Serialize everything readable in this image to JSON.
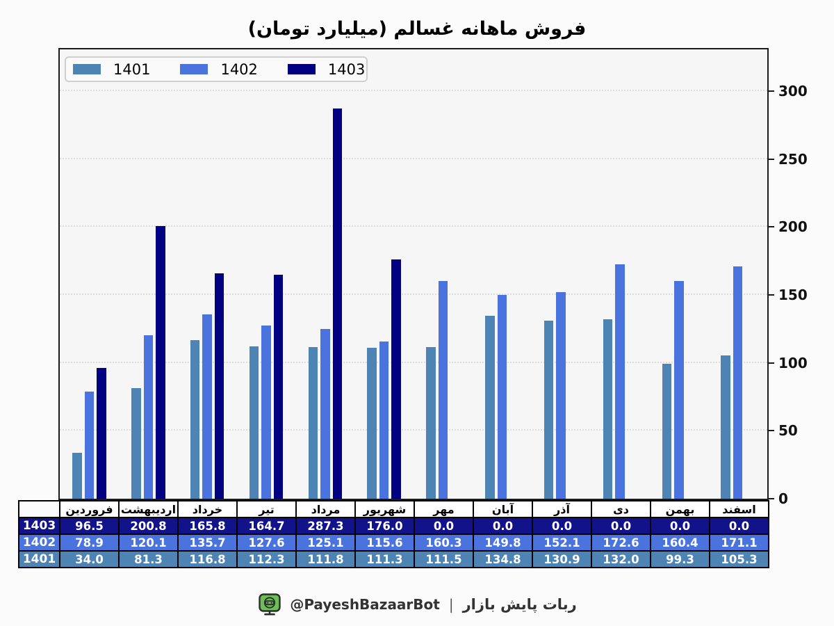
{
  "title": "فروش ماهانه غسالم (میلیارد تومان)",
  "colors": {
    "series_1401": "#4e84b4",
    "series_1402": "#4a73dd",
    "series_1403": "#000080",
    "table_row_1403": "#12128a",
    "table_row_1402": "#4a73dd",
    "table_row_1401": "#4e84b4",
    "frame": "#1a1a1a",
    "grid": "#dcdcdc",
    "plot_bg": "#f6f6f7",
    "page_bg": "#fbfbfb",
    "icon_green": "#6cbe57"
  },
  "legend": {
    "items": [
      {
        "label": "1401",
        "color": "#4e84b4"
      },
      {
        "label": "1402",
        "color": "#4a73dd"
      },
      {
        "label": "1403",
        "color": "#000080"
      }
    ]
  },
  "chart_data": {
    "type": "bar",
    "title": "فروش ماهانه غسالم (میلیارد تومان)",
    "unit": "میلیارد تومان",
    "categories": [
      "فروردین",
      "اردیبهشت",
      "خرداد",
      "تیر",
      "مرداد",
      "شهریور",
      "مهر",
      "آبان",
      "آذر",
      "دی",
      "بهمن",
      "اسفند"
    ],
    "series": [
      {
        "name": "1401",
        "color": "#4e84b4",
        "values": [
          34.0,
          81.3,
          116.8,
          112.3,
          111.8,
          111.3,
          111.5,
          134.8,
          130.9,
          132.0,
          99.3,
          105.3
        ]
      },
      {
        "name": "1402",
        "color": "#4a73dd",
        "values": [
          78.9,
          120.1,
          135.7,
          127.6,
          125.1,
          115.6,
          160.3,
          149.8,
          152.1,
          172.6,
          160.4,
          171.1
        ]
      },
      {
        "name": "1403",
        "color": "#000080",
        "values": [
          96.5,
          200.8,
          165.8,
          164.7,
          287.3,
          176.0,
          0.0,
          0.0,
          0.0,
          0.0,
          0.0,
          0.0
        ]
      }
    ],
    "ylim": [
      0,
      331
    ],
    "yticks": [
      0,
      50,
      100,
      150,
      200,
      250,
      300
    ],
    "grid": "horizontal-dotted",
    "legend_position": "upper-left"
  },
  "table": {
    "months": [
      "فروردین",
      "اردیبهشت",
      "خرداد",
      "تیر",
      "مرداد",
      "شهریور",
      "مهر",
      "آبان",
      "آذر",
      "دی",
      "بهمن",
      "اسفند"
    ],
    "rows": [
      {
        "label": "1403",
        "bg": "#12128a",
        "values": [
          "96.5",
          "200.8",
          "165.8",
          "164.7",
          "287.3",
          "176.0",
          "0.0",
          "0.0",
          "0.0",
          "0.0",
          "0.0",
          "0.0"
        ]
      },
      {
        "label": "1402",
        "bg": "#4a73dd",
        "values": [
          "78.9",
          "120.1",
          "135.7",
          "127.6",
          "125.1",
          "115.6",
          "160.3",
          "149.8",
          "152.1",
          "172.6",
          "160.4",
          "171.1"
        ]
      },
      {
        "label": "1401",
        "bg": "#4e84b4",
        "values": [
          "34.0",
          "81.3",
          "116.8",
          "112.3",
          "111.8",
          "111.3",
          "111.5",
          "134.8",
          "130.9",
          "132.0",
          "99.3",
          "105.3"
        ]
      }
    ]
  },
  "footer": {
    "handle": "@PayeshBazaarBot",
    "separator": "|",
    "name": "ربات پایش بازار",
    "icon": "robot-monitor-icon"
  }
}
